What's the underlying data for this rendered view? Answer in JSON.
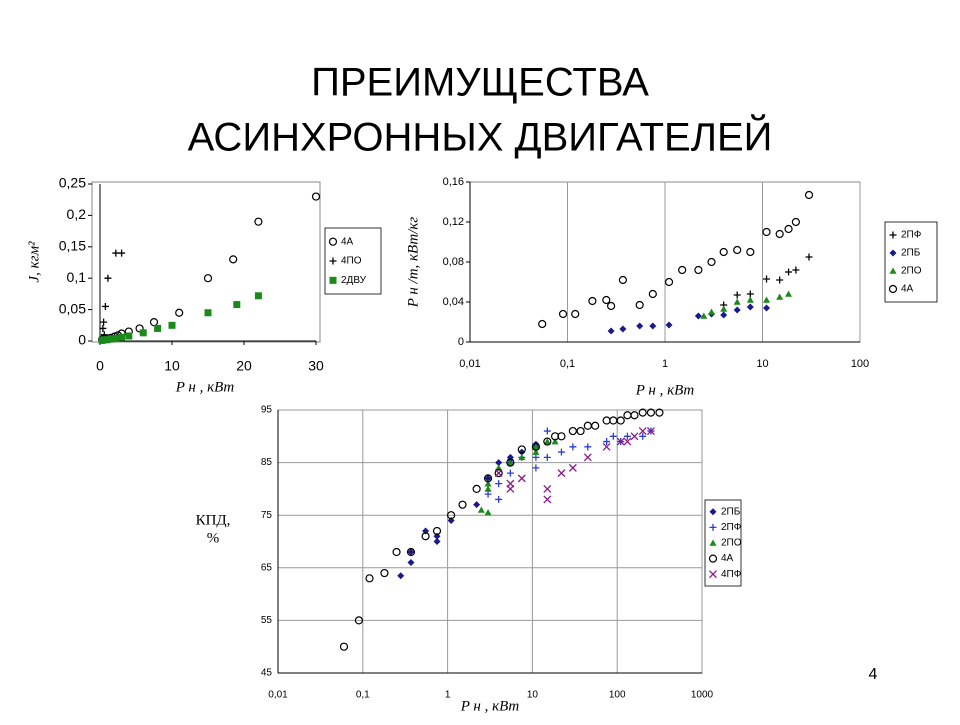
{
  "slide": {
    "title": [
      "ПРЕИМУЩЕСТВА",
      "АСИНХРОННЫХ ДВИГАТЕЛЕЙ"
    ],
    "page_number": "4"
  },
  "chart_data": [
    {
      "type": "scatter",
      "x_label": "P н , кВт",
      "y_label": "J, кгм²",
      "xlog": false,
      "grid": false,
      "legend": "right",
      "xlim": [
        0,
        30
      ],
      "xticks": [
        0,
        10,
        20,
        30
      ],
      "ylim": [
        0,
        0.25
      ],
      "yticks": [
        0,
        {
          "value": 0.05,
          "label": "0,05"
        },
        {
          "value": 0.1,
          "label": "0,1"
        },
        {
          "value": 0.15,
          "label": "0,15"
        },
        {
          "value": 0.2,
          "label": "0,2"
        },
        {
          "value": 0.25,
          "label": "0,25"
        }
      ],
      "series": [
        {
          "name": "4А",
          "marker": "circle",
          "color": "#000000",
          "x": [
            0.3,
            0.6,
            1,
            1.5,
            2,
            2.5,
            3,
            4,
            5.5,
            7.5,
            11,
            15,
            18.5,
            22,
            30
          ],
          "values": [
            0.002,
            0.003,
            0.004,
            0.005,
            0.007,
            0.009,
            0.012,
            0.015,
            0.02,
            0.03,
            0.045,
            0.1,
            0.13,
            0.19,
            0.23
          ]
        },
        {
          "name": "4ПО",
          "marker": "plus",
          "color": "#000000",
          "x": [
            0.25,
            0.4,
            0.5,
            0.6,
            0.75,
            1.1,
            2.2,
            3
          ],
          "values": [
            0.005,
            0.02,
            0.03,
            0.01,
            0.055,
            0.1,
            0.14,
            0.14
          ]
        },
        {
          "name": "2ДВУ",
          "marker": "square",
          "color": "#1a8a1a",
          "x": [
            0.3,
            0.6,
            1,
            1.5,
            2.2,
            3,
            4,
            6,
            8,
            10,
            15,
            19,
            22
          ],
          "values": [
            0.001,
            0.002,
            0.002,
            0.003,
            0.004,
            0.006,
            0.008,
            0.013,
            0.02,
            0.025,
            0.045,
            0.058,
            0.072
          ]
        }
      ]
    },
    {
      "type": "scatter",
      "x_label": "P н , кВт",
      "y_label": "P н /m, кВт/кг",
      "xlog": true,
      "grid": true,
      "legend": "right",
      "xlim": [
        0.01,
        100
      ],
      "xticks": [
        {
          "value": 0.01,
          "label": "0,01"
        },
        {
          "value": 0.1,
          "label": "0,1"
        },
        1,
        10,
        100
      ],
      "ylim": [
        0,
        0.16
      ],
      "yticks": [
        0,
        {
          "value": 0.04,
          "label": "0,04"
        },
        {
          "value": 0.08,
          "label": "0,08"
        },
        {
          "value": 0.12,
          "label": "0,12"
        },
        {
          "value": 0.16,
          "label": "0,16"
        }
      ],
      "series": [
        {
          "name": "2ПФ",
          "marker": "plus",
          "color": "#000000",
          "x": [
            4,
            5.5,
            7.5,
            11,
            15,
            18.5,
            22,
            30
          ],
          "values": [
            0.037,
            0.047,
            0.048,
            0.063,
            0.062,
            0.07,
            0.072,
            0.085
          ]
        },
        {
          "name": "2ПБ",
          "marker": "diamond",
          "color": "#1a1a8c",
          "x": [
            0.28,
            0.37,
            0.55,
            0.75,
            1.1,
            2.2,
            3,
            4,
            5.5,
            7.5,
            11
          ],
          "values": [
            0.011,
            0.013,
            0.016,
            0.016,
            0.017,
            0.026,
            0.028,
            0.027,
            0.032,
            0.035,
            0.034
          ]
        },
        {
          "name": "2ПО",
          "marker": "triangle",
          "color": "#1a8a1a",
          "x": [
            2.5,
            3,
            4,
            5.5,
            7.5,
            11,
            15,
            18.5
          ],
          "values": [
            0.026,
            0.03,
            0.033,
            0.04,
            0.042,
            0.042,
            0.045,
            0.048
          ]
        },
        {
          "name": "4А",
          "marker": "circle",
          "color": "#000000",
          "x": [
            0.055,
            0.09,
            0.12,
            0.18,
            0.25,
            0.28,
            0.37,
            0.55,
            0.75,
            1.1,
            1.5,
            2.2,
            3,
            4,
            5.5,
            7.5,
            11,
            15,
            18.5,
            22,
            30
          ],
          "values": [
            0.018,
            0.028,
            0.028,
            0.041,
            0.042,
            0.036,
            0.062,
            0.037,
            0.048,
            0.06,
            0.072,
            0.072,
            0.08,
            0.09,
            0.092,
            0.09,
            0.11,
            0.108,
            0.113,
            0.12,
            0.147
          ]
        }
      ]
    },
    {
      "type": "scatter",
      "x_label": "P н , кВт",
      "y_label": [
        "КПД,",
        "%"
      ],
      "xlog": true,
      "grid": true,
      "legend": "right",
      "xlim": [
        0.01,
        1000
      ],
      "xticks": [
        {
          "value": 0.01,
          "label": "0,01"
        },
        {
          "value": 0.1,
          "label": "0,1"
        },
        1,
        10,
        100,
        1000
      ],
      "ylim": [
        45,
        95
      ],
      "yticks": [
        45,
        55,
        65,
        75,
        85,
        95
      ],
      "series": [
        {
          "name": "2ПБ",
          "marker": "diamond",
          "color": "#1a1a8c",
          "x": [
            0.28,
            0.37,
            0.37,
            0.55,
            0.75,
            0.75,
            1.1,
            2.2,
            3,
            4,
            5.5,
            5.5,
            7.5,
            11,
            11
          ],
          "values": [
            63.5,
            66,
            68,
            72,
            70,
            71,
            74,
            77,
            82,
            85,
            85.5,
            86,
            87,
            88,
            88.5
          ]
        },
        {
          "name": "2ПФ",
          "marker": "plus",
          "color": "#2a3fd0",
          "x": [
            3,
            4,
            4,
            5.5,
            5.5,
            7.5,
            11,
            11,
            15,
            15,
            22,
            30,
            45,
            75,
            90,
            110,
            132,
            200,
            250
          ],
          "values": [
            79,
            78,
            81,
            83,
            85,
            86,
            84,
            86,
            86,
            91,
            87,
            88,
            88,
            89,
            90,
            89,
            90,
            90,
            91
          ]
        },
        {
          "name": "2ПО",
          "marker": "triangle",
          "color": "#1a8a1a",
          "x": [
            2.5,
            3,
            3,
            3,
            4,
            5.5,
            7.5,
            11,
            11,
            15,
            18.5
          ],
          "values": [
            76,
            75.5,
            80,
            81,
            84,
            85,
            86,
            87,
            88,
            89,
            89
          ]
        },
        {
          "name": "4А",
          "marker": "circle",
          "color": "#000000",
          "x": [
            0.06,
            0.09,
            0.12,
            0.18,
            0.25,
            0.37,
            0.55,
            0.75,
            1.1,
            1.5,
            2.2,
            3,
            4,
            5.5,
            7.5,
            11,
            15,
            18.5,
            22,
            30,
            37,
            45,
            55,
            75,
            90,
            110,
            132,
            160,
            200,
            250,
            315
          ],
          "values": [
            50,
            55,
            63,
            64,
            68,
            68,
            71,
            72,
            75,
            77,
            80,
            82,
            83,
            85,
            87.5,
            88,
            89,
            90,
            90,
            91,
            91,
            92,
            92,
            93,
            93,
            93,
            94,
            94,
            94.5,
            94.5,
            94.5
          ]
        },
        {
          "name": "4ПФ",
          "marker": "x",
          "color": "#8a1a8a",
          "x": [
            4,
            5.5,
            5.5,
            7.5,
            15,
            15,
            22,
            30,
            45,
            75,
            110,
            132,
            160,
            200,
            250
          ],
          "values": [
            83,
            80,
            81,
            82,
            78,
            80,
            83,
            84,
            86,
            88,
            89,
            89,
            90,
            91,
            91
          ]
        }
      ]
    }
  ]
}
